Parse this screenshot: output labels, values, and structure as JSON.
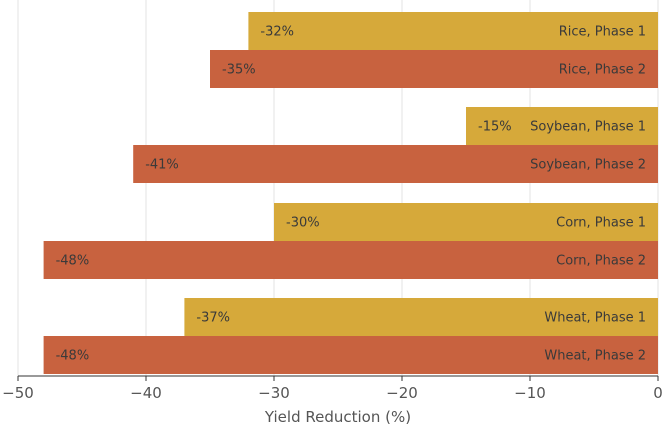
{
  "chart_data": {
    "type": "bar",
    "orientation": "horizontal",
    "xlabel": "Yield Reduction (%)",
    "xlim": [
      -50,
      0
    ],
    "xticks": [
      -50,
      -40,
      -30,
      -20,
      -10,
      0
    ],
    "xtick_labels": [
      "−50",
      "−40",
      "−30",
      "−20",
      "−10",
      "0"
    ],
    "grid": "vertical",
    "bars": [
      {
        "label": "Rice, Phase 1",
        "value": -32,
        "value_label": "-32%",
        "phase": 1
      },
      {
        "label": "Rice, Phase 2",
        "value": -35,
        "value_label": "-35%",
        "phase": 2
      },
      {
        "label": "Soybean, Phase 1",
        "value": -15,
        "value_label": "-15%",
        "phase": 1
      },
      {
        "label": "Soybean, Phase 2",
        "value": -41,
        "value_label": "-41%",
        "phase": 2
      },
      {
        "label": "Corn, Phase 1",
        "value": -30,
        "value_label": "-30%",
        "phase": 1
      },
      {
        "label": "Corn, Phase 2",
        "value": -48,
        "value_label": "-48%",
        "phase": 2
      },
      {
        "label": "Wheat, Phase 1",
        "value": -37,
        "value_label": "-37%",
        "phase": 1
      },
      {
        "label": "Wheat, Phase 2",
        "value": -48,
        "value_label": "-48%",
        "phase": 2
      }
    ],
    "colors": {
      "phase1": "#d6a93a",
      "phase2": "#c8623f",
      "grid": "#e3e3e3",
      "axis": "#333333"
    }
  }
}
